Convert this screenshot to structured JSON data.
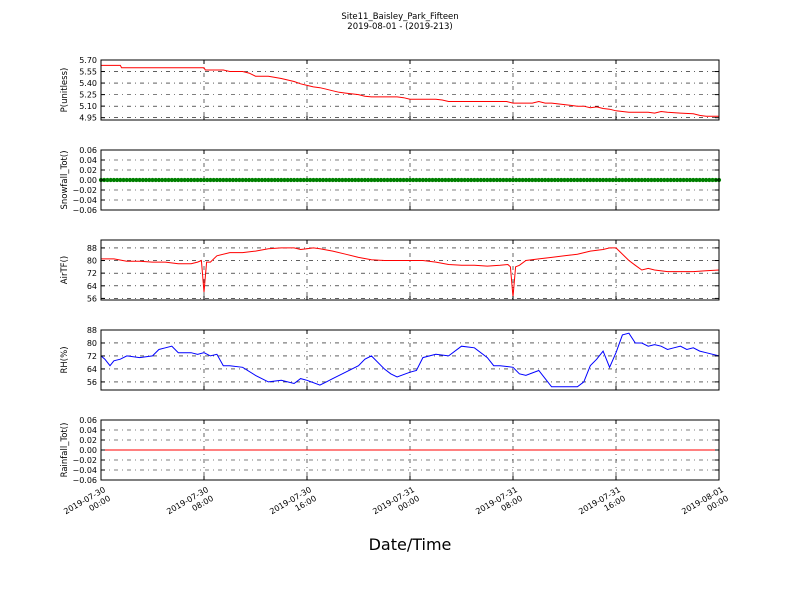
{
  "figure": {
    "title_line1": "Site11_Baisley_Park_Fifteen",
    "title_line2": "2019-08-01 - (2019-213)",
    "xlabel": "Date/Time",
    "x_ticks": [
      {
        "line1": "2019-07-30",
        "line2": "00:00",
        "hours": 0
      },
      {
        "line1": "2019-07-30",
        "line2": "08:00",
        "hours": 8
      },
      {
        "line1": "2019-07-30",
        "line2": "16:00",
        "hours": 16
      },
      {
        "line1": "2019-07-31",
        "line2": "00:00",
        "hours": 24
      },
      {
        "line1": "2019-07-31",
        "line2": "08:00",
        "hours": 32
      },
      {
        "line1": "2019-07-31",
        "line2": "16:00",
        "hours": 40
      },
      {
        "line1": "2019-08-01",
        "line2": "00:00",
        "hours": 48
      }
    ]
  },
  "chart_data": [
    {
      "type": "line",
      "ylabel": "P(unitless)",
      "ylim": [
        4.92,
        5.7
      ],
      "yticks": [
        "5.70",
        "5.55",
        "5.40",
        "5.25",
        "5.10",
        "4.95"
      ],
      "ytick_values": [
        5.7,
        5.55,
        5.4,
        5.25,
        5.1,
        4.95
      ],
      "grid": true,
      "series": [
        {
          "color": "#ff0000",
          "x": [
            0,
            1.5,
            1.6,
            3,
            4,
            5,
            6,
            7,
            8,
            8.1,
            9,
            9.5,
            10,
            11,
            11.5,
            12,
            13,
            14,
            14.5,
            15,
            15.5,
            16,
            16.5,
            17,
            17.5,
            18,
            18.5,
            19,
            20,
            20.5,
            21,
            22,
            23,
            23.5,
            24,
            25,
            26,
            26.5,
            27,
            28,
            29,
            30,
            31,
            31.5,
            32,
            33,
            33.5,
            34,
            34.5,
            35,
            36,
            36.5,
            37,
            37.5,
            38,
            38.5,
            39,
            39.5,
            40,
            41,
            42,
            42.5,
            43,
            43.5,
            44,
            45,
            46,
            46.5,
            47,
            48
          ],
          "y": [
            5.63,
            5.63,
            5.6,
            5.6,
            5.6,
            5.6,
            5.6,
            5.6,
            5.6,
            5.57,
            5.57,
            5.57,
            5.55,
            5.55,
            5.53,
            5.49,
            5.49,
            5.46,
            5.44,
            5.42,
            5.39,
            5.37,
            5.35,
            5.34,
            5.32,
            5.3,
            5.28,
            5.27,
            5.25,
            5.23,
            5.22,
            5.22,
            5.22,
            5.21,
            5.19,
            5.19,
            5.19,
            5.18,
            5.16,
            5.16,
            5.16,
            5.16,
            5.16,
            5.16,
            5.14,
            5.14,
            5.14,
            5.16,
            5.14,
            5.14,
            5.12,
            5.11,
            5.1,
            5.1,
            5.08,
            5.09,
            5.07,
            5.06,
            5.04,
            5.02,
            5.02,
            5.02,
            5.01,
            5.03,
            5.02,
            5.01,
            5.0,
            4.98,
            4.97,
            4.97
          ]
        }
      ]
    },
    {
      "type": "scatter",
      "ylabel": "Snowfall_Tot()",
      "ylim": [
        -0.06,
        0.06
      ],
      "yticks": [
        "0.06",
        "0.04",
        "0.02",
        "0.00",
        "−0.02",
        "−0.04",
        "−0.06"
      ],
      "ytick_values": [
        0.06,
        0.04,
        0.02,
        0.0,
        -0.02,
        -0.04,
        -0.06
      ],
      "grid": true,
      "series": [
        {
          "color": "#008000",
          "x_range": [
            0,
            48
          ],
          "interval_minutes": 15,
          "value": 0.0
        }
      ]
    },
    {
      "type": "line",
      "ylabel": "AirTF()",
      "ylim": [
        55,
        93
      ],
      "yticks": [
        "88",
        "80",
        "72",
        "64",
        "56"
      ],
      "ytick_values": [
        88,
        80,
        72,
        64,
        56
      ],
      "grid": true,
      "series": [
        {
          "color": "#ff0000",
          "x": [
            0,
            1,
            2,
            3,
            4,
            5,
            6,
            7,
            7.5,
            7.8,
            8,
            8.2,
            8.5,
            9,
            10,
            11,
            12,
            13,
            14,
            15,
            15.5,
            16,
            16.5,
            17,
            18,
            19,
            20,
            21,
            22,
            23,
            24,
            25,
            26,
            27,
            28,
            29,
            30,
            31,
            31.6,
            31.8,
            32,
            32.2,
            32.5,
            33,
            34,
            35,
            36,
            37,
            38,
            39,
            39.5,
            40,
            41,
            41.5,
            42,
            42.5,
            43,
            44,
            45,
            46,
            47,
            48
          ],
          "y": [
            81,
            81,
            79.5,
            79.5,
            79,
            79,
            78,
            78,
            79,
            80,
            60,
            79,
            79,
            83,
            85,
            85,
            86,
            87.5,
            88,
            88,
            87,
            87.5,
            88,
            87.5,
            86,
            84,
            82,
            80.5,
            80,
            80,
            80,
            80,
            79,
            77.5,
            77,
            77,
            76.5,
            77,
            77.5,
            76,
            57,
            76,
            77,
            80,
            81,
            82,
            83,
            84,
            86,
            87,
            88,
            88,
            80,
            77,
            74,
            75,
            74,
            73,
            73,
            73,
            73.5,
            74
          ]
        }
      ]
    },
    {
      "type": "line",
      "ylabel": "RH(%)",
      "ylim": [
        51,
        88
      ],
      "yticks": [
        "88",
        "80",
        "72",
        "64",
        "56"
      ],
      "ytick_values": [
        88,
        80,
        72,
        64,
        56
      ],
      "grid": true,
      "series": [
        {
          "color": "#0000ff",
          "x": [
            0,
            0.3,
            0.7,
            1,
            1.5,
            2,
            3,
            4,
            4.5,
            5,
            5.5,
            6,
            6.5,
            7,
            7.5,
            8,
            8.5,
            9,
            9.5,
            10,
            11,
            12,
            13,
            14,
            15,
            15.5,
            16,
            17,
            17.5,
            18,
            19,
            20,
            20.5,
            21,
            22,
            22.5,
            23,
            24,
            24.5,
            25,
            26,
            27,
            28,
            29,
            30,
            30.5,
            31,
            32,
            32.5,
            33,
            34,
            35,
            36,
            37,
            37.5,
            38,
            38.5,
            39,
            39.5,
            40,
            40.5,
            41,
            41.5,
            42,
            42.5,
            43,
            43.5,
            44,
            44.5,
            45,
            45.5,
            46,
            46.5,
            47,
            48
          ],
          "y": [
            72,
            70,
            66,
            69,
            70,
            72,
            71,
            72,
            76,
            77,
            78,
            74,
            74,
            74,
            73,
            74,
            72,
            73,
            66,
            66,
            65,
            60,
            56,
            57,
            55,
            58,
            57,
            54,
            56,
            58,
            62,
            66,
            70,
            72,
            64,
            61,
            59,
            62,
            63,
            71,
            73,
            72,
            78,
            77,
            71,
            66,
            66,
            65,
            61,
            60,
            63,
            53,
            53,
            53,
            56,
            66,
            70,
            75,
            65,
            74,
            85,
            86,
            80,
            80,
            78,
            79,
            78,
            76,
            77,
            78,
            76,
            77,
            75,
            74,
            72
          ]
        }
      ]
    },
    {
      "type": "line",
      "ylabel": "Rainfall_Tot()",
      "ylim": [
        -0.06,
        0.06
      ],
      "yticks": [
        "0.06",
        "0.04",
        "0.02",
        "0.00",
        "−0.02",
        "−0.04",
        "−0.06"
      ],
      "ytick_values": [
        0.06,
        0.04,
        0.02,
        0.0,
        -0.02,
        -0.04,
        -0.06
      ],
      "grid": true,
      "series": [
        {
          "color": "#ff0000",
          "x": [
            0,
            48
          ],
          "y": [
            0,
            0
          ]
        }
      ]
    }
  ]
}
